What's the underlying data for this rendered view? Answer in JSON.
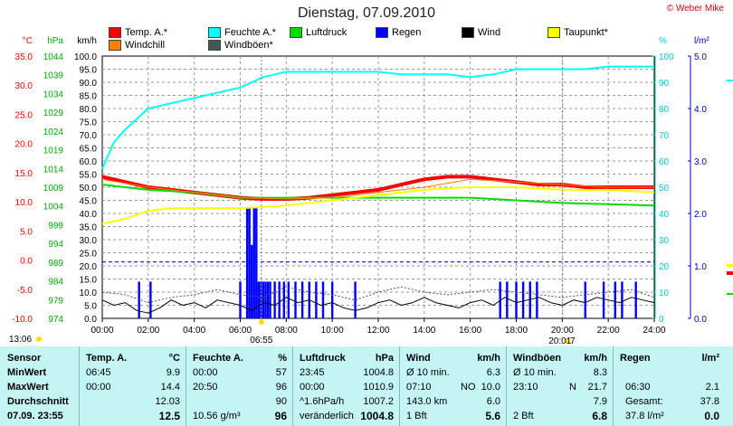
{
  "title": "Dienstag, 07.09.2010",
  "credit": "© Weber Mike",
  "legend": [
    {
      "label": "Temp. A.*",
      "color": "#ff0000"
    },
    {
      "label": "Feuchte A.*",
      "color": "#00ffff"
    },
    {
      "label": "Luftdruck",
      "color": "#00dd00"
    },
    {
      "label": "Regen",
      "color": "#0000ff"
    },
    {
      "label": "Wind",
      "color": "#000000"
    },
    {
      "label": "Taupunkt*",
      "color": "#ffff00"
    },
    {
      "label": "Windchill",
      "color": "#ff8000"
    },
    {
      "label": "Windböen*",
      "color": "#405858"
    }
  ],
  "chart_data": {
    "type": "line",
    "x_ticks": [
      "00:00",
      "02:00",
      "04:00",
      "06:00",
      "08:00",
      "10:00",
      "12:00",
      "14:00",
      "16:00",
      "18:00",
      "20:00",
      "22:00",
      "24:00"
    ],
    "axes": {
      "temp": {
        "unit": "°C",
        "color": "#ff0000",
        "ticks": [
          "35.0",
          "30.0",
          "25.0",
          "20.0",
          "15.0",
          "10.0",
          "5.0",
          "0.0",
          "-5.0",
          "-10.0"
        ],
        "range": [
          -10,
          35
        ]
      },
      "pressure": {
        "unit": "hPa",
        "color": "#00aa00",
        "ticks": [
          "1044",
          "1039",
          "1034",
          "1029",
          "1024",
          "1019",
          "1014",
          "1009",
          "1004",
          "999",
          "994",
          "989",
          "984",
          "979",
          "974"
        ],
        "range": [
          974,
          1044
        ]
      },
      "wind": {
        "unit": "km/h",
        "color": "#000000",
        "ticks": [
          "100.0",
          "95.0",
          "90.0",
          "85.0",
          "80.0",
          "75.0",
          "70.0",
          "65.0",
          "60.0",
          "55.0",
          "50.0",
          "45.0",
          "40.0",
          "35.0",
          "30.0",
          "25.0",
          "20.0",
          "15.0",
          "10.0",
          "5.0",
          "0.0"
        ],
        "range": [
          0,
          100
        ]
      },
      "humidity": {
        "unit": "%",
        "color": "#00cccc",
        "ticks": [
          "100",
          "90",
          "80",
          "70",
          "60",
          "50",
          "40",
          "30",
          "20",
          "10",
          "0"
        ],
        "range": [
          0,
          100
        ]
      },
      "rain": {
        "unit": "l/m²",
        "color": "#0000cc",
        "ticks": [
          "5.0",
          "4.0",
          "3.0",
          "2.0",
          "1.0",
          "0.0"
        ],
        "range": [
          0,
          5
        ]
      }
    },
    "series": [
      {
        "name": "Temp. A.*",
        "color": "#ff0000",
        "axis": "wind",
        "width": 4,
        "x": [
          0,
          1,
          2,
          3,
          4,
          5,
          6,
          7,
          8,
          9,
          10,
          11,
          12,
          13,
          14,
          15,
          16,
          17,
          18,
          19,
          20,
          21,
          22,
          23,
          24
        ],
        "y": [
          54,
          52,
          50,
          49,
          48,
          47,
          46,
          45.5,
          45.5,
          46,
          47,
          48,
          49,
          51,
          53,
          54,
          54,
          53,
          52,
          51,
          51,
          50,
          50,
          50,
          50
        ]
      },
      {
        "name": "Feuchte A.*",
        "color": "#00ffff",
        "axis": "wind",
        "width": 2,
        "x": [
          0,
          0.5,
          1,
          1.5,
          2,
          3,
          4,
          5,
          6,
          6.5,
          7,
          7.5,
          8,
          9,
          10,
          11,
          12,
          13,
          14,
          15,
          16,
          17,
          18,
          19,
          20,
          21,
          22,
          23,
          24
        ],
        "y": [
          57,
          67,
          72,
          76,
          80,
          82,
          84,
          86,
          88,
          90,
          92,
          93,
          94,
          94,
          94,
          94,
          94,
          93,
          93,
          93,
          92,
          93,
          95,
          95,
          95,
          95,
          96,
          96,
          96
        ]
      },
      {
        "name": "Luftdruck",
        "color": "#00dd00",
        "axis": "wind",
        "width": 2,
        "x": [
          0,
          2,
          4,
          5,
          6,
          7,
          8,
          10,
          12,
          14,
          16,
          18,
          20,
          22,
          24
        ],
        "y": [
          51,
          49,
          48,
          47,
          46,
          46,
          46,
          46,
          46,
          46,
          46,
          45,
          44,
          43.5,
          43
        ]
      },
      {
        "name": "Taupunkt*",
        "color": "#ffff00",
        "axis": "wind",
        "width": 2,
        "x": [
          0,
          1,
          2,
          3,
          4,
          6,
          8,
          10,
          12,
          14,
          16,
          18,
          20,
          22,
          24
        ],
        "y": [
          36,
          38,
          41,
          42,
          42,
          42,
          43,
          45,
          47,
          49,
          50,
          50,
          49,
          49,
          48
        ]
      },
      {
        "name": "Windchill",
        "color": "#ff8000",
        "axis": "wind",
        "width": 1,
        "x": [
          0,
          2,
          4,
          6,
          8,
          10,
          12,
          14,
          16,
          18,
          20,
          22,
          24
        ],
        "y": [
          53,
          50,
          48,
          46,
          45.5,
          46,
          48,
          50,
          53,
          52,
          51,
          50,
          50
        ]
      },
      {
        "name": "Windböen*",
        "color": "#405858",
        "axis": "wind",
        "width": 1,
        "dash": "2,2",
        "x": [
          0,
          1,
          2,
          3,
          4,
          5,
          6,
          7,
          8,
          9,
          10,
          11,
          12,
          13,
          14,
          15,
          16,
          17,
          18,
          19,
          20,
          21,
          22,
          23,
          24
        ],
        "y": [
          10,
          9,
          6,
          8,
          9,
          11,
          9,
          8,
          12,
          10,
          9,
          7,
          10,
          12,
          10,
          9,
          10,
          11,
          10,
          9,
          8,
          9,
          10,
          11,
          8
        ]
      },
      {
        "name": "Wind",
        "color": "#000000",
        "axis": "wind",
        "width": 1,
        "x": [
          0,
          0.5,
          1,
          1.5,
          2,
          2.5,
          3,
          3.5,
          4,
          4.5,
          5,
          5.5,
          6,
          6.5,
          7,
          7.5,
          8,
          8.5,
          9,
          9.5,
          10,
          10.5,
          11,
          11.5,
          12,
          12.5,
          13,
          13.5,
          14,
          14.5,
          15,
          15.5,
          16,
          16.5,
          17,
          17.5,
          18,
          18.5,
          19,
          19.5,
          20,
          20.5,
          21,
          21.5,
          22,
          22.5,
          23,
          23.5,
          24
        ],
        "y": [
          7,
          5,
          6,
          3,
          2,
          4,
          7,
          5,
          6,
          4,
          7,
          6,
          5,
          3,
          6,
          5,
          8,
          6,
          7,
          5,
          6,
          4,
          3,
          4,
          6,
          7,
          5,
          6,
          8,
          6,
          5,
          4,
          6,
          7,
          5,
          8,
          6,
          7,
          8,
          6,
          5,
          7,
          6,
          8,
          7,
          6,
          8,
          7,
          6
        ]
      }
    ],
    "rain": {
      "name": "Regen",
      "color": "#0000ff",
      "axis": "rain",
      "x": [
        1.6,
        2.1,
        6.0,
        6.3,
        6.4,
        6.5,
        6.6,
        6.7,
        6.8,
        6.9,
        7.0,
        7.1,
        7.2,
        7.3,
        7.5,
        7.7,
        7.9,
        8.1,
        8.4,
        8.7,
        9.0,
        9.3,
        9.6,
        10.0,
        11.0,
        17.3,
        17.6,
        18.0,
        18.3,
        18.6,
        18.9,
        21.0,
        21.8,
        22.3,
        22.6,
        23.2
      ],
      "y": [
        0.7,
        0.7,
        0.7,
        2.1,
        2.1,
        1.4,
        2.1,
        2.1,
        0.7,
        0.7,
        0.7,
        0.7,
        0.7,
        0.7,
        0.7,
        0.7,
        0.7,
        0.7,
        0.7,
        0.7,
        0.7,
        0.7,
        0.7,
        0.7,
        0.7,
        0.7,
        0.7,
        0.7,
        0.7,
        0.7,
        0.7,
        0.7,
        0.7,
        0.7,
        0.7,
        0.7
      ]
    },
    "reference_line": {
      "axis": "wind",
      "value": 21.5,
      "style": "dashed",
      "color": "#0000aa"
    }
  },
  "markers": {
    "sunrise": "06:55",
    "sunset": "20:01",
    "sunset_suffix": "7",
    "left_time": "13:06"
  },
  "summary": {
    "sensor": {
      "header": "Sensor",
      "rows": [
        "MinWert",
        "MaxWert",
        "Durchschnitt",
        "07.09. 23:55"
      ]
    },
    "temp": {
      "header": "Temp. A.",
      "unit": "°C",
      "rows": [
        [
          "06:45",
          "9.9"
        ],
        [
          "00:00",
          "14.4"
        ],
        [
          "",
          "12.03"
        ],
        [
          "",
          "12.5"
        ]
      ]
    },
    "humidity": {
      "header": "Feuchte A.",
      "unit": "%",
      "rows": [
        [
          "00:00",
          "57"
        ],
        [
          "20:50",
          "96"
        ],
        [
          "",
          "90"
        ],
        [
          "10.56 g/m³",
          "96"
        ]
      ]
    },
    "pressure": {
      "header": "Luftdruck",
      "unit": "hPa",
      "rows": [
        [
          "23:45",
          "1004.8"
        ],
        [
          "00:00",
          "1010.9"
        ],
        [
          "^1.6hPa/h",
          "1007.2"
        ],
        [
          "veränderlich",
          "1004.8"
        ]
      ]
    },
    "wind": {
      "header": "Wind",
      "unit": "km/h",
      "rows": [
        [
          "Ø 10 min.",
          "",
          "6.3"
        ],
        [
          "07:10",
          "NO",
          "10.0"
        ],
        [
          "143.0 km",
          "",
          "6.0"
        ],
        [
          "1 Bft",
          "",
          "5.6"
        ]
      ]
    },
    "gusts": {
      "header": "Windböen",
      "unit": "km/h",
      "rows": [
        [
          "Ø 10 min.",
          "",
          "8.3"
        ],
        [
          "23:10",
          "N",
          "21.7"
        ],
        [
          "",
          "",
          "7.9"
        ],
        [
          "2 Bft",
          "",
          "6.8"
        ]
      ]
    },
    "rain": {
      "header": "Regen",
      "unit": "l/m²",
      "rows": [
        [
          "",
          ""
        ],
        [
          "06:30",
          "2.1"
        ],
        [
          "Gesamt:",
          "37.8"
        ],
        [
          "37.8 l/m²",
          "0.0"
        ]
      ]
    }
  }
}
